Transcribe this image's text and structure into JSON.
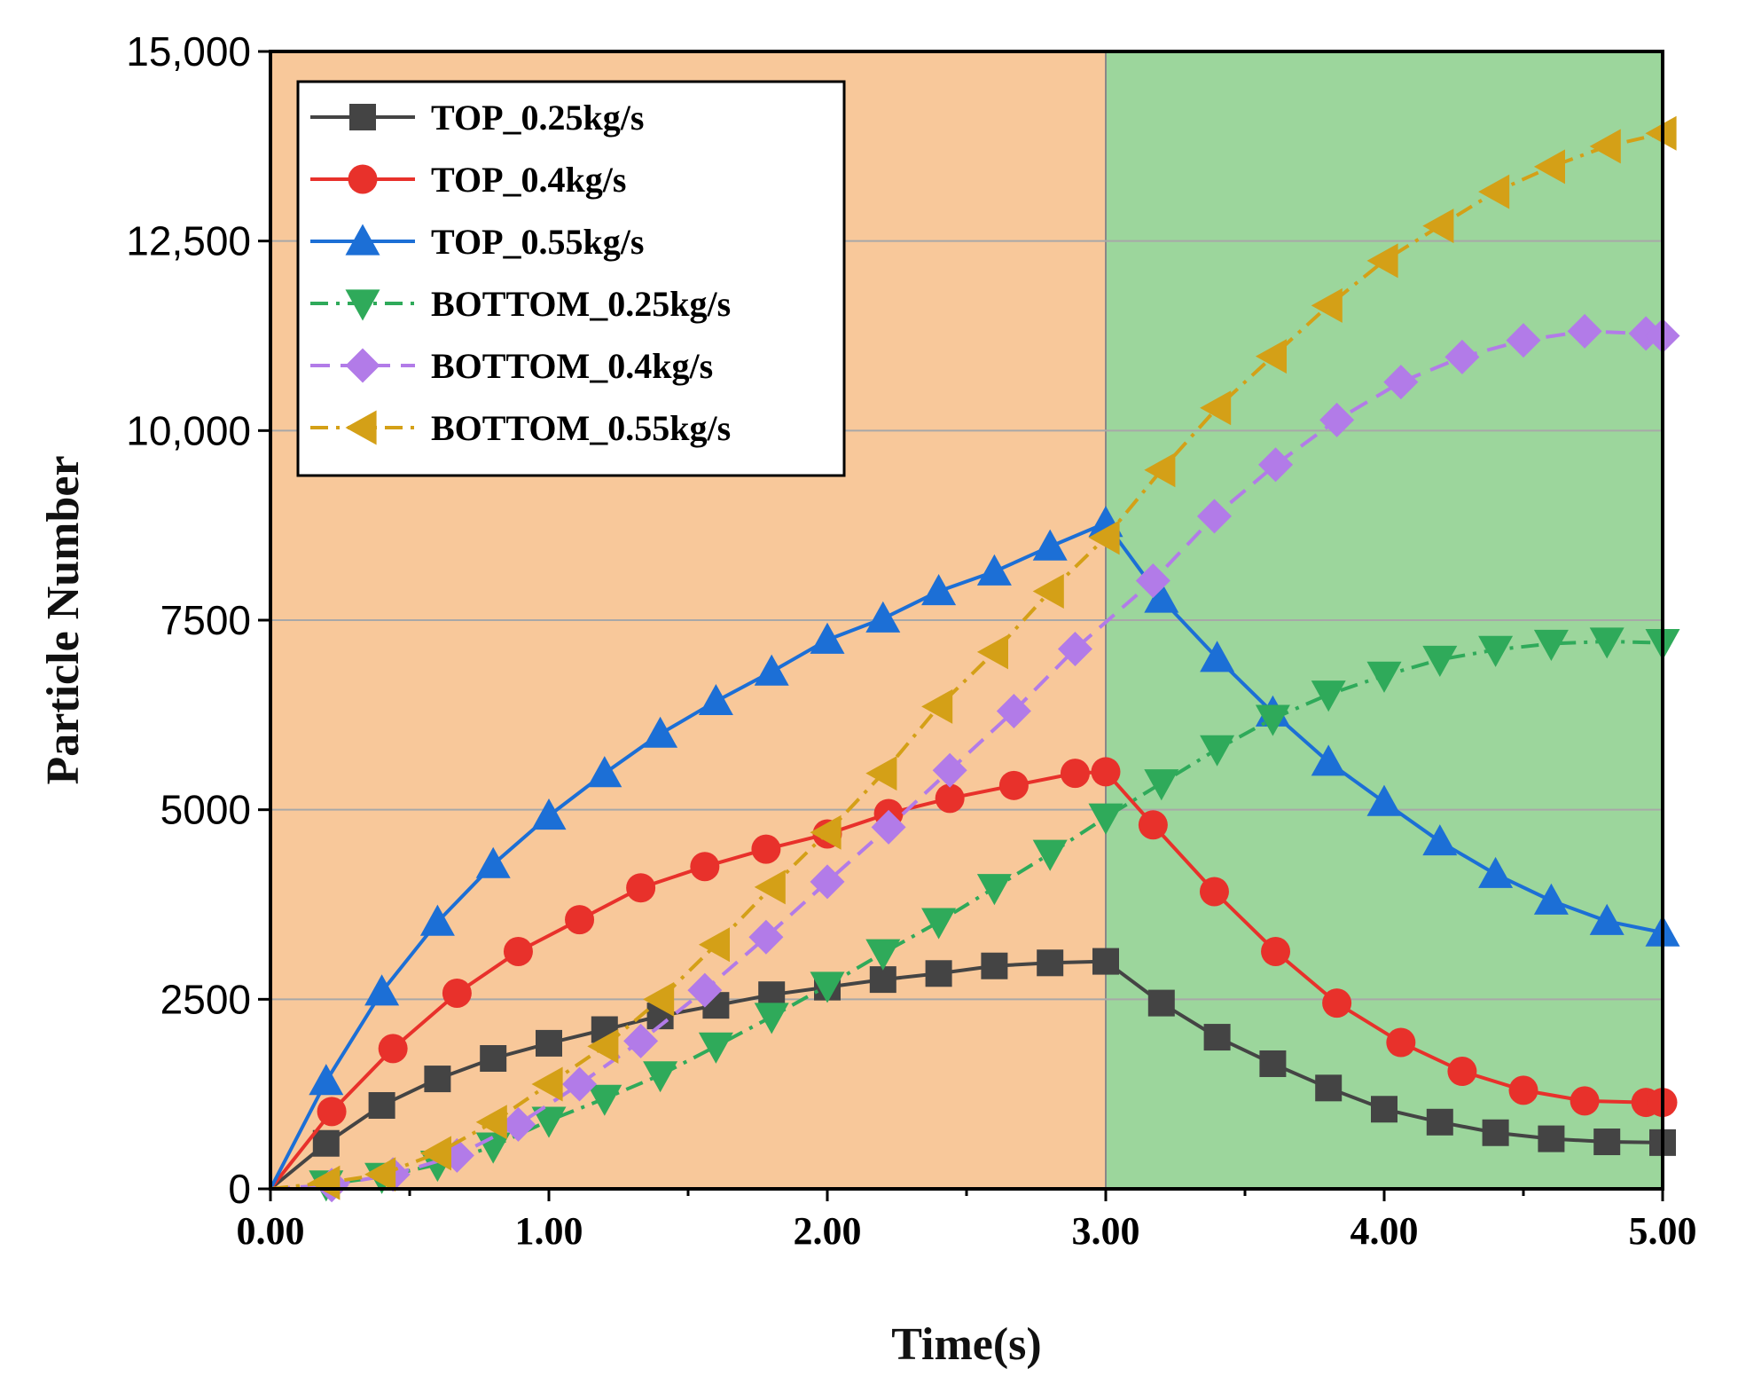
{
  "chart_data": {
    "type": "line",
    "title": "",
    "xlabel": "Time(s)",
    "ylabel": "Particle Number",
    "xlim": [
      0,
      5
    ],
    "ylim": [
      0,
      15000
    ],
    "x_ticks": [
      0,
      1,
      2,
      3,
      4,
      5
    ],
    "x_tick_labels": [
      "0.00",
      "1.00",
      "2.00",
      "3.00",
      "4.00",
      "5.00"
    ],
    "y_ticks": [
      0,
      2500,
      5000,
      7500,
      10000,
      12500,
      15000
    ],
    "y_tick_labels": [
      "0",
      "2500",
      "5000",
      "7500",
      "10,000",
      "12,500",
      "15,000"
    ],
    "grid": "horizontal",
    "legend_position": "top-left",
    "background_regions": [
      {
        "from": 0,
        "to": 3,
        "color": "#f8c89a"
      },
      {
        "from": 3,
        "to": 5,
        "color": "#9cd69c"
      }
    ],
    "series": [
      {
        "name": "TOP_0.25kg/s",
        "color": "#444444",
        "marker": "square",
        "dash": "solid",
        "x": [
          0,
          0.2,
          0.4,
          0.6,
          0.8,
          1.0,
          1.2,
          1.4,
          1.6,
          1.8,
          2.0,
          2.2,
          2.4,
          2.6,
          2.8,
          3.0,
          3.2,
          3.4,
          3.6,
          3.8,
          4.0,
          4.2,
          4.4,
          4.6,
          4.8,
          5.0
        ],
        "y": [
          0,
          600,
          1100,
          1450,
          1720,
          1920,
          2100,
          2280,
          2420,
          2560,
          2660,
          2760,
          2840,
          2940,
          2980,
          3000,
          2450,
          2000,
          1650,
          1330,
          1050,
          880,
          740,
          660,
          620,
          610
        ]
      },
      {
        "name": "TOP_0.4kg/s",
        "color": "#e8312b",
        "marker": "circle",
        "dash": "solid",
        "x": [
          0,
          0.22,
          0.44,
          0.67,
          0.89,
          1.11,
          1.33,
          1.56,
          1.78,
          2.0,
          2.22,
          2.44,
          2.67,
          2.89,
          3.0,
          3.17,
          3.39,
          3.61,
          3.83,
          4.06,
          4.28,
          4.5,
          4.72,
          4.94,
          5.0
        ],
        "y": [
          0,
          1020,
          1850,
          2580,
          3130,
          3550,
          3970,
          4250,
          4480,
          4680,
          4950,
          5150,
          5320,
          5480,
          5500,
          4800,
          3920,
          3130,
          2450,
          1930,
          1550,
          1300,
          1160,
          1140,
          1140
        ]
      },
      {
        "name": "TOP_0.55kg/s",
        "color": "#1c6fd6",
        "marker": "triangle-up",
        "dash": "solid",
        "x": [
          0,
          0.2,
          0.4,
          0.6,
          0.8,
          1.0,
          1.2,
          1.4,
          1.6,
          1.8,
          2.0,
          2.2,
          2.4,
          2.6,
          2.8,
          3.0,
          3.2,
          3.4,
          3.6,
          3.8,
          4.0,
          4.2,
          4.4,
          4.6,
          4.8,
          5.0
        ],
        "y": [
          0,
          1420,
          2600,
          3520,
          4280,
          4920,
          5480,
          6000,
          6430,
          6820,
          7240,
          7520,
          7880,
          8140,
          8470,
          8780,
          7780,
          7000,
          6280,
          5630,
          5100,
          4580,
          4150,
          3800,
          3530,
          3380
        ]
      },
      {
        "name": "BOTTOM_0.25kg/s",
        "color": "#2faa5a",
        "marker": "triangle-down",
        "dash": "dashdot",
        "x": [
          0,
          0.2,
          0.4,
          0.6,
          0.8,
          1.0,
          1.2,
          1.4,
          1.6,
          1.8,
          2.0,
          2.2,
          2.4,
          2.6,
          2.8,
          3.0,
          3.2,
          3.4,
          3.6,
          3.8,
          4.0,
          4.2,
          4.4,
          4.6,
          4.8,
          5.0
        ],
        "y": [
          0,
          60,
          160,
          320,
          560,
          900,
          1190,
          1500,
          1880,
          2270,
          2680,
          3110,
          3520,
          3970,
          4420,
          4900,
          5350,
          5800,
          6200,
          6520,
          6770,
          6980,
          7110,
          7190,
          7220,
          7200
        ]
      },
      {
        "name": "BOTTOM_0.4kg/s",
        "color": "#b27be8",
        "marker": "diamond",
        "dash": "dashed",
        "x": [
          0,
          0.22,
          0.44,
          0.67,
          0.89,
          1.11,
          1.33,
          1.56,
          1.78,
          2.0,
          2.22,
          2.44,
          2.67,
          2.89,
          3.17,
          3.39,
          3.61,
          3.83,
          4.06,
          4.28,
          4.5,
          4.72,
          4.94,
          5.0
        ],
        "y": [
          0,
          50,
          190,
          440,
          850,
          1380,
          1950,
          2620,
          3320,
          4050,
          4770,
          5520,
          6300,
          7120,
          8020,
          8870,
          9550,
          10140,
          10640,
          10970,
          11190,
          11310,
          11280,
          11250
        ]
      },
      {
        "name": "BOTTOM_0.55kg/s",
        "color": "#d4a017",
        "marker": "triangle-left",
        "dash": "dashdot",
        "x": [
          0,
          0.2,
          0.4,
          0.6,
          0.8,
          1.0,
          1.2,
          1.4,
          1.6,
          1.8,
          2.0,
          2.2,
          2.4,
          2.6,
          2.8,
          3.0,
          3.2,
          3.4,
          3.6,
          3.8,
          4.0,
          4.2,
          4.4,
          4.6,
          4.8,
          5.0
        ],
        "y": [
          0,
          80,
          190,
          470,
          880,
          1380,
          1880,
          2500,
          3220,
          3980,
          4700,
          5480,
          6360,
          7080,
          7880,
          8590,
          9480,
          10300,
          10980,
          11650,
          12240,
          12700,
          13150,
          13480,
          13750,
          13920
        ]
      }
    ]
  }
}
